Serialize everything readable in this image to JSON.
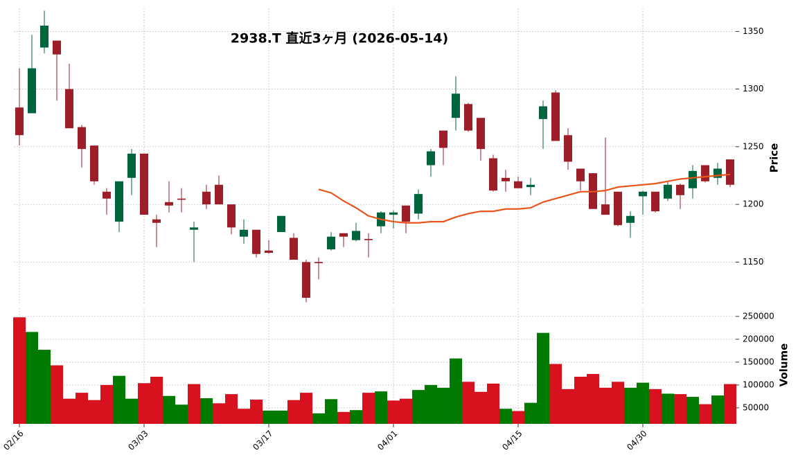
{
  "chart_data": {
    "type": "candlestick",
    "title": "2938.T  直近3ヶ月  (2026-05-14)",
    "categories": [
      "02/16",
      null,
      null,
      null,
      null,
      null,
      null,
      null,
      null,
      null,
      "03/03",
      null,
      null,
      null,
      null,
      null,
      null,
      null,
      null,
      null,
      "03/17",
      null,
      null,
      null,
      null,
      null,
      null,
      null,
      null,
      null,
      "04/01",
      null,
      null,
      null,
      null,
      null,
      null,
      null,
      null,
      null,
      "04/15",
      null,
      null,
      null,
      null,
      null,
      null,
      null,
      null,
      null,
      "04/30",
      null,
      null,
      null,
      null,
      null,
      null,
      null
    ],
    "open": [
      1284,
      1279,
      1336,
      1342,
      1300,
      1267,
      1251,
      1211,
      1185,
      1223,
      1244,
      1187,
      1202,
      1205,
      1178,
      1211,
      1217,
      1200,
      1172,
      1178,
      1160,
      1176,
      1171,
      1150,
      1150,
      1161,
      1175,
      1169,
      1170,
      1181,
      1191,
      1199,
      1192,
      1234,
      1264,
      1275,
      1287,
      1275,
      1240,
      1223,
      1220,
      1215,
      1274,
      1297,
      1260,
      1231,
      1227,
      1200,
      1211,
      1184,
      1207,
      1211,
      1205,
      1217,
      1214,
      1234,
      1223,
      1239
    ],
    "high": [
      1318,
      1347,
      1368,
      1342,
      1322,
      1269,
      1251,
      1214,
      1220,
      1248,
      1244,
      1191,
      1220,
      1214,
      1185,
      1217,
      1225,
      1200,
      1187,
      1178,
      1169,
      1190,
      1175,
      1152,
      1154,
      1176,
      1175,
      1184,
      1175,
      1194,
      1195,
      1199,
      1213,
      1248,
      1264,
      1311,
      1288,
      1275,
      1243,
      1230,
      1224,
      1223,
      1290,
      1299,
      1266,
      1231,
      1227,
      1258,
      1211,
      1194,
      1212,
      1211,
      1220,
      1218,
      1234,
      1234,
      1236,
      1239
    ],
    "low": [
      1251,
      1279,
      1331,
      1290,
      1266,
      1232,
      1217,
      1191,
      1176,
      1208,
      1191,
      1163,
      1193,
      1193,
      1150,
      1196,
      1200,
      1174,
      1166,
      1154,
      1157,
      1176,
      1152,
      1115,
      1135,
      1160,
      1163,
      1168,
      1154,
      1175,
      1179,
      1175,
      1187,
      1224,
      1234,
      1264,
      1263,
      1238,
      1211,
      1211,
      1214,
      1208,
      1248,
      1255,
      1230,
      1212,
      1196,
      1191,
      1181,
      1171,
      1191,
      1193,
      1203,
      1196,
      1205,
      1219,
      1217,
      1215
    ],
    "close": [
      1260,
      1318,
      1355,
      1330,
      1266,
      1248,
      1220,
      1205,
      1220,
      1244,
      1191,
      1184,
      1199,
      1204,
      1180,
      1200,
      1200,
      1180,
      1178,
      1157,
      1158,
      1190,
      1152,
      1119,
      1149,
      1172,
      1172,
      1177,
      1169,
      1193,
      1193,
      1185,
      1209,
      1246,
      1249,
      1296,
      1264,
      1248,
      1212,
      1220,
      1214,
      1217,
      1285,
      1255,
      1237,
      1220,
      1196,
      1191,
      1182,
      1190,
      1211,
      1194,
      1217,
      1208,
      1229,
      1220,
      1231,
      1217
    ],
    "up_color": "#00643c",
    "down_color": "#9c1e28",
    "ylabel": "Price",
    "ylim": [
      1113,
      1370
    ],
    "yticks": [
      1150,
      1200,
      1250,
      1300,
      1350
    ],
    "grid": true,
    "moving_average": {
      "color": "#e8541a",
      "values": [
        null,
        null,
        null,
        null,
        null,
        null,
        null,
        null,
        null,
        null,
        null,
        null,
        null,
        null,
        null,
        null,
        null,
        null,
        null,
        null,
        null,
        null,
        null,
        null,
        1213,
        1210,
        1203,
        1197,
        1190,
        1187,
        1185,
        1184,
        1184,
        1185,
        1185,
        1189,
        1192,
        1194,
        1194,
        1196,
        1196,
        1197,
        1202,
        1205,
        1208,
        1211,
        1211,
        1212,
        1215,
        1216,
        1217,
        1218,
        1220,
        1222,
        1223,
        1224,
        1225,
        1226
      ]
    },
    "volume": {
      "ylabel": "Volume",
      "ylim": [
        15000,
        268000
      ],
      "yticks": [
        50000,
        100000,
        150000,
        200000,
        250000
      ],
      "values": [
        248000,
        216000,
        177000,
        143000,
        70000,
        83000,
        67000,
        100000,
        120000,
        70000,
        104000,
        118000,
        76000,
        57000,
        102000,
        71000,
        60000,
        80000,
        48000,
        68000,
        44000,
        44000,
        67000,
        83000,
        38000,
        69000,
        41000,
        45000,
        83000,
        86000,
        66000,
        70000,
        89000,
        100000,
        94000,
        158000,
        107000,
        85000,
        103000,
        48000,
        43000,
        61000,
        214000,
        146000,
        91000,
        118000,
        124000,
        94000,
        107000,
        94000,
        105000,
        91000,
        81000,
        80000,
        74000,
        58000,
        77000,
        102000
      ],
      "colors": [
        "#d7111e",
        "#007a00",
        "#007a00",
        "#d7111e",
        "#d7111e",
        "#d7111e",
        "#d7111e",
        "#d7111e",
        "#007a00",
        "#007a00",
        "#d7111e",
        "#d7111e",
        "#007a00",
        "#007a00",
        "#d7111e",
        "#007a00",
        "#d7111e",
        "#d7111e",
        "#d7111e",
        "#d7111e",
        "#007a00",
        "#007a00",
        "#d7111e",
        "#d7111e",
        "#007a00",
        "#007a00",
        "#d7111e",
        "#007a00",
        "#d7111e",
        "#007a00",
        "#d7111e",
        "#d7111e",
        "#007a00",
        "#007a00",
        "#007a00",
        "#007a00",
        "#d7111e",
        "#d7111e",
        "#d7111e",
        "#007a00",
        "#d7111e",
        "#007a00",
        "#007a00",
        "#d7111e",
        "#d7111e",
        "#d7111e",
        "#d7111e",
        "#d7111e",
        "#d7111e",
        "#007a00",
        "#007a00",
        "#d7111e",
        "#007a00",
        "#d7111e",
        "#007a00",
        "#d7111e",
        "#007a00",
        "#d7111e"
      ]
    }
  }
}
